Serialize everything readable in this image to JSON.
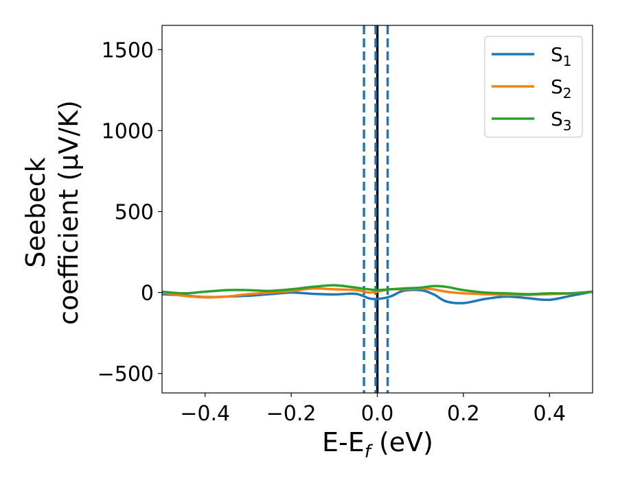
{
  "chart_data": {
    "type": "line",
    "xlabel": {
      "main": "E-E",
      "sub": "f",
      "unit": " (eV)"
    },
    "ylabel": {
      "line1": "Seebeck",
      "line2": "coefficient  (μV/K)"
    },
    "xlim": [
      -0.5,
      0.5
    ],
    "ylim": [
      -620,
      1650
    ],
    "x_ticks": [
      -0.4,
      -0.2,
      0.0,
      0.2,
      0.4
    ],
    "x_tick_labels": [
      "−0.4",
      "−0.2",
      "0.0",
      "0.2",
      "0.4"
    ],
    "y_ticks": [
      -500,
      0,
      500,
      1000,
      1500
    ],
    "y_tick_labels": [
      "−500",
      "0",
      "500",
      "1000",
      "1500"
    ],
    "grid": false,
    "legend_position": "top-right",
    "vlines": [
      {
        "x": 0.0,
        "color": "#000000",
        "style": "solid"
      },
      {
        "x": -0.031,
        "color": "#1f77b4",
        "style": "dashed"
      },
      {
        "x": -0.004,
        "color": "#1f77b4",
        "style": "dashed"
      },
      {
        "x": 0.024,
        "color": "#1f77b4",
        "style": "dashed"
      }
    ],
    "series": [
      {
        "name": "S",
        "sub": "1",
        "color": "#1f77b4",
        "x": [
          -0.5,
          -0.45,
          -0.4,
          -0.35,
          -0.3,
          -0.25,
          -0.2,
          -0.15,
          -0.1,
          -0.05,
          -0.02,
          0.0,
          0.03,
          0.06,
          0.1,
          0.13,
          0.16,
          0.2,
          0.25,
          0.3,
          0.35,
          0.4,
          0.45,
          0.5
        ],
        "y": [
          -10,
          -18,
          -28,
          -25,
          -20,
          -10,
          0,
          -8,
          -12,
          -8,
          -35,
          -40,
          -25,
          10,
          15,
          -10,
          -55,
          -65,
          -40,
          -25,
          -35,
          -45,
          -20,
          5
        ]
      },
      {
        "name": "S",
        "sub": "2",
        "color": "#ff7f0e",
        "x": [
          -0.5,
          -0.45,
          -0.4,
          -0.35,
          -0.3,
          -0.25,
          -0.2,
          -0.15,
          -0.1,
          -0.05,
          -0.02,
          0.0,
          0.03,
          0.06,
          0.1,
          0.13,
          0.16,
          0.2,
          0.25,
          0.3,
          0.35,
          0.4,
          0.45,
          0.5
        ],
        "y": [
          0,
          -20,
          -30,
          -25,
          -10,
          0,
          10,
          25,
          20,
          15,
          0,
          5,
          20,
          20,
          25,
          20,
          5,
          -5,
          -10,
          -15,
          -15,
          -10,
          -5,
          5
        ]
      },
      {
        "name": "S",
        "sub": "3",
        "color": "#2ca02c",
        "x": [
          -0.5,
          -0.45,
          -0.4,
          -0.35,
          -0.3,
          -0.25,
          -0.2,
          -0.15,
          -0.1,
          -0.05,
          -0.02,
          0.0,
          0.03,
          0.06,
          0.1,
          0.13,
          0.16,
          0.2,
          0.25,
          0.3,
          0.35,
          0.4,
          0.45,
          0.5
        ],
        "y": [
          5,
          -5,
          5,
          15,
          15,
          10,
          20,
          35,
          45,
          30,
          20,
          15,
          20,
          25,
          30,
          40,
          35,
          15,
          0,
          -5,
          -10,
          -5,
          -5,
          5
        ]
      }
    ]
  }
}
